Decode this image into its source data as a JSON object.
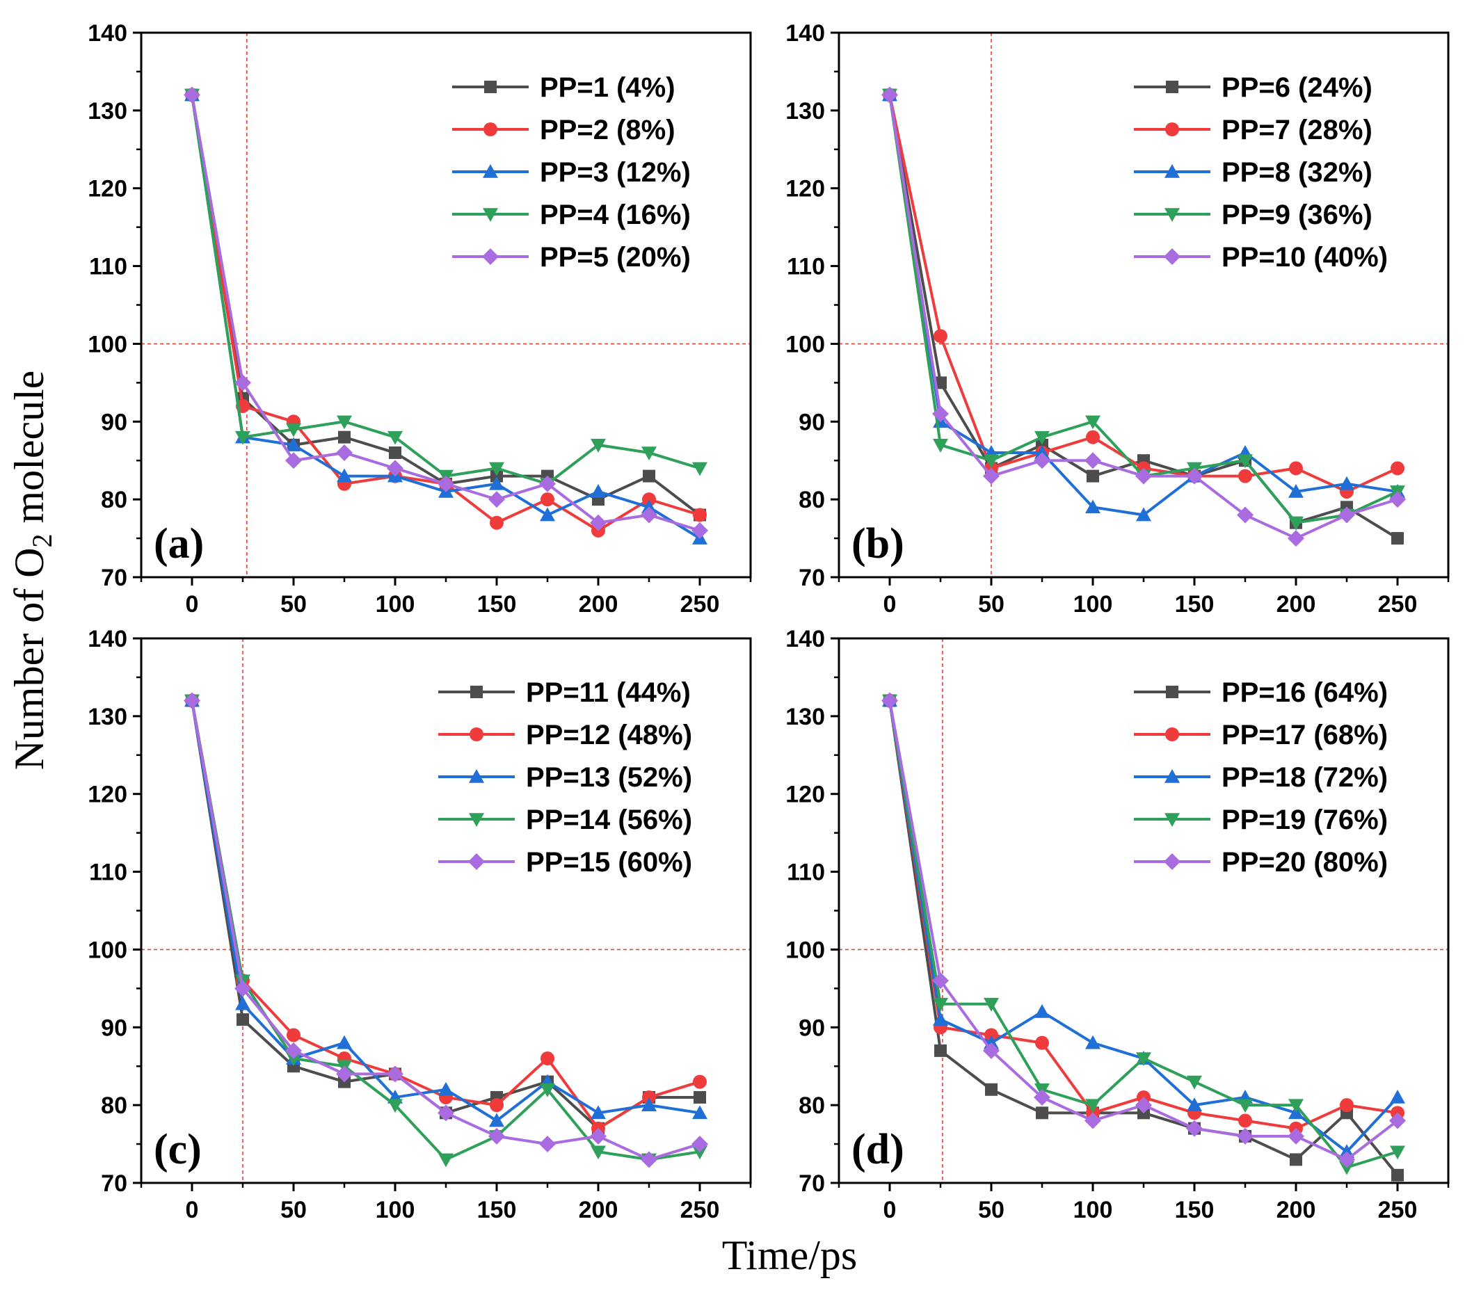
{
  "figure": {
    "ylabel_pre": "Number of O",
    "ylabel_sub": "2",
    "ylabel_post": " molecule",
    "xlabel": "Time/ps"
  },
  "colors": {
    "series": [
      "#4d4d4d",
      "#ef3b3b",
      "#1f6fd6",
      "#2ea05a",
      "#a96be0"
    ],
    "reference": "#e8413a"
  },
  "chart_data": [
    {
      "type": "line",
      "panel": "(a)",
      "x": [
        0,
        25,
        50,
        75,
        100,
        125,
        150,
        175,
        200,
        225,
        250
      ],
      "xlim": [
        -25,
        275
      ],
      "xticks": [
        0,
        50,
        100,
        150,
        200,
        250
      ],
      "ylim": [
        70,
        140
      ],
      "yticks": [
        70,
        80,
        90,
        100,
        110,
        120,
        130,
        140
      ],
      "ref_x": 27,
      "ref_y": 100,
      "series": [
        {
          "name": "PP=1 (4%)",
          "marker": "square",
          "values": [
            132,
            93,
            87,
            88,
            86,
            82,
            83,
            83,
            80,
            83,
            78
          ]
        },
        {
          "name": "PP=2 (8%)",
          "marker": "circle",
          "values": [
            132,
            92,
            90,
            82,
            83,
            82,
            77,
            80,
            76,
            80,
            78
          ]
        },
        {
          "name": "PP=3 (12%)",
          "marker": "triangle-up",
          "values": [
            132,
            88,
            87,
            83,
            83,
            81,
            82,
            78,
            81,
            79,
            75
          ]
        },
        {
          "name": "PP=4 (16%)",
          "marker": "triangle-down",
          "values": [
            132,
            88,
            89,
            90,
            88,
            83,
            84,
            82,
            87,
            86,
            84
          ]
        },
        {
          "name": "PP=5 (20%)",
          "marker": "diamond",
          "values": [
            132,
            95,
            85,
            86,
            84,
            82,
            80,
            82,
            77,
            78,
            76
          ]
        }
      ]
    },
    {
      "type": "line",
      "panel": "(b)",
      "x": [
        0,
        25,
        50,
        75,
        100,
        125,
        150,
        175,
        200,
        225,
        250
      ],
      "xlim": [
        -25,
        275
      ],
      "xticks": [
        0,
        50,
        100,
        150,
        200,
        250
      ],
      "ylim": [
        70,
        140
      ],
      "yticks": [
        70,
        80,
        90,
        100,
        110,
        120,
        130,
        140
      ],
      "ref_x": 50,
      "ref_y": 100,
      "series": [
        {
          "name": "PP=6 (24%)",
          "marker": "square",
          "values": [
            132,
            95,
            84,
            87,
            83,
            85,
            83,
            85,
            77,
            79,
            75
          ]
        },
        {
          "name": "PP=7 (28%)",
          "marker": "circle",
          "values": [
            132,
            101,
            84,
            86,
            88,
            84,
            83,
            83,
            84,
            81,
            84
          ]
        },
        {
          "name": "PP=8 (32%)",
          "marker": "triangle-up",
          "values": [
            132,
            90,
            86,
            86,
            79,
            78,
            83,
            86,
            81,
            82,
            81
          ]
        },
        {
          "name": "PP=9 (36%)",
          "marker": "triangle-down",
          "values": [
            132,
            87,
            85,
            88,
            90,
            83,
            84,
            85,
            77,
            78,
            81
          ]
        },
        {
          "name": "PP=10 (40%)",
          "marker": "diamond",
          "values": [
            132,
            91,
            83,
            85,
            85,
            83,
            83,
            78,
            75,
            78,
            80
          ]
        }
      ]
    },
    {
      "type": "line",
      "panel": "(c)",
      "x": [
        0,
        25,
        50,
        75,
        100,
        125,
        150,
        175,
        200,
        225,
        250
      ],
      "xlim": [
        -25,
        275
      ],
      "xticks": [
        0,
        50,
        100,
        150,
        200,
        250
      ],
      "ylim": [
        70,
        140
      ],
      "yticks": [
        70,
        80,
        90,
        100,
        110,
        120,
        130,
        140
      ],
      "ref_x": 25,
      "ref_y": 100,
      "series": [
        {
          "name": "PP=11 (44%)",
          "marker": "square",
          "values": [
            132,
            91,
            85,
            83,
            84,
            79,
            81,
            83,
            77,
            81,
            81
          ]
        },
        {
          "name": "PP=12 (48%)",
          "marker": "circle",
          "values": [
            132,
            96,
            89,
            86,
            84,
            81,
            80,
            86,
            77,
            81,
            83
          ]
        },
        {
          "name": "PP=13 (52%)",
          "marker": "triangle-up",
          "values": [
            132,
            93,
            86,
            88,
            81,
            82,
            78,
            83,
            79,
            80,
            79
          ]
        },
        {
          "name": "PP=14 (56%)",
          "marker": "triangle-down",
          "values": [
            132,
            96,
            86,
            85,
            80,
            73,
            76,
            82,
            74,
            73,
            74
          ]
        },
        {
          "name": "PP=15 (60%)",
          "marker": "diamond",
          "values": [
            132,
            95,
            87,
            84,
            84,
            79,
            76,
            75,
            76,
            73,
            75
          ]
        }
      ]
    },
    {
      "type": "line",
      "panel": "(d)",
      "x": [
        0,
        25,
        50,
        75,
        100,
        125,
        150,
        175,
        200,
        225,
        250
      ],
      "xlim": [
        -25,
        275
      ],
      "xticks": [
        0,
        50,
        100,
        150,
        200,
        250
      ],
      "ylim": [
        70,
        140
      ],
      "yticks": [
        70,
        80,
        90,
        100,
        110,
        120,
        130,
        140
      ],
      "ref_x": 26,
      "ref_y": 100,
      "series": [
        {
          "name": "PP=16 (64%)",
          "marker": "square",
          "values": [
            132,
            87,
            82,
            79,
            79,
            79,
            77,
            76,
            73,
            79,
            71
          ]
        },
        {
          "name": "PP=17 (68%)",
          "marker": "circle",
          "values": [
            132,
            90,
            89,
            88,
            79,
            81,
            79,
            78,
            77,
            80,
            79
          ]
        },
        {
          "name": "PP=18 (72%)",
          "marker": "triangle-up",
          "values": [
            132,
            91,
            88,
            92,
            88,
            86,
            80,
            81,
            79,
            74,
            81
          ]
        },
        {
          "name": "PP=19 (76%)",
          "marker": "triangle-down",
          "values": [
            132,
            93,
            93,
            82,
            80,
            86,
            83,
            80,
            80,
            72,
            74
          ]
        },
        {
          "name": "PP=20 (80%)",
          "marker": "diamond",
          "values": [
            132,
            96,
            87,
            81,
            78,
            80,
            77,
            76,
            76,
            73,
            78
          ]
        }
      ]
    }
  ]
}
